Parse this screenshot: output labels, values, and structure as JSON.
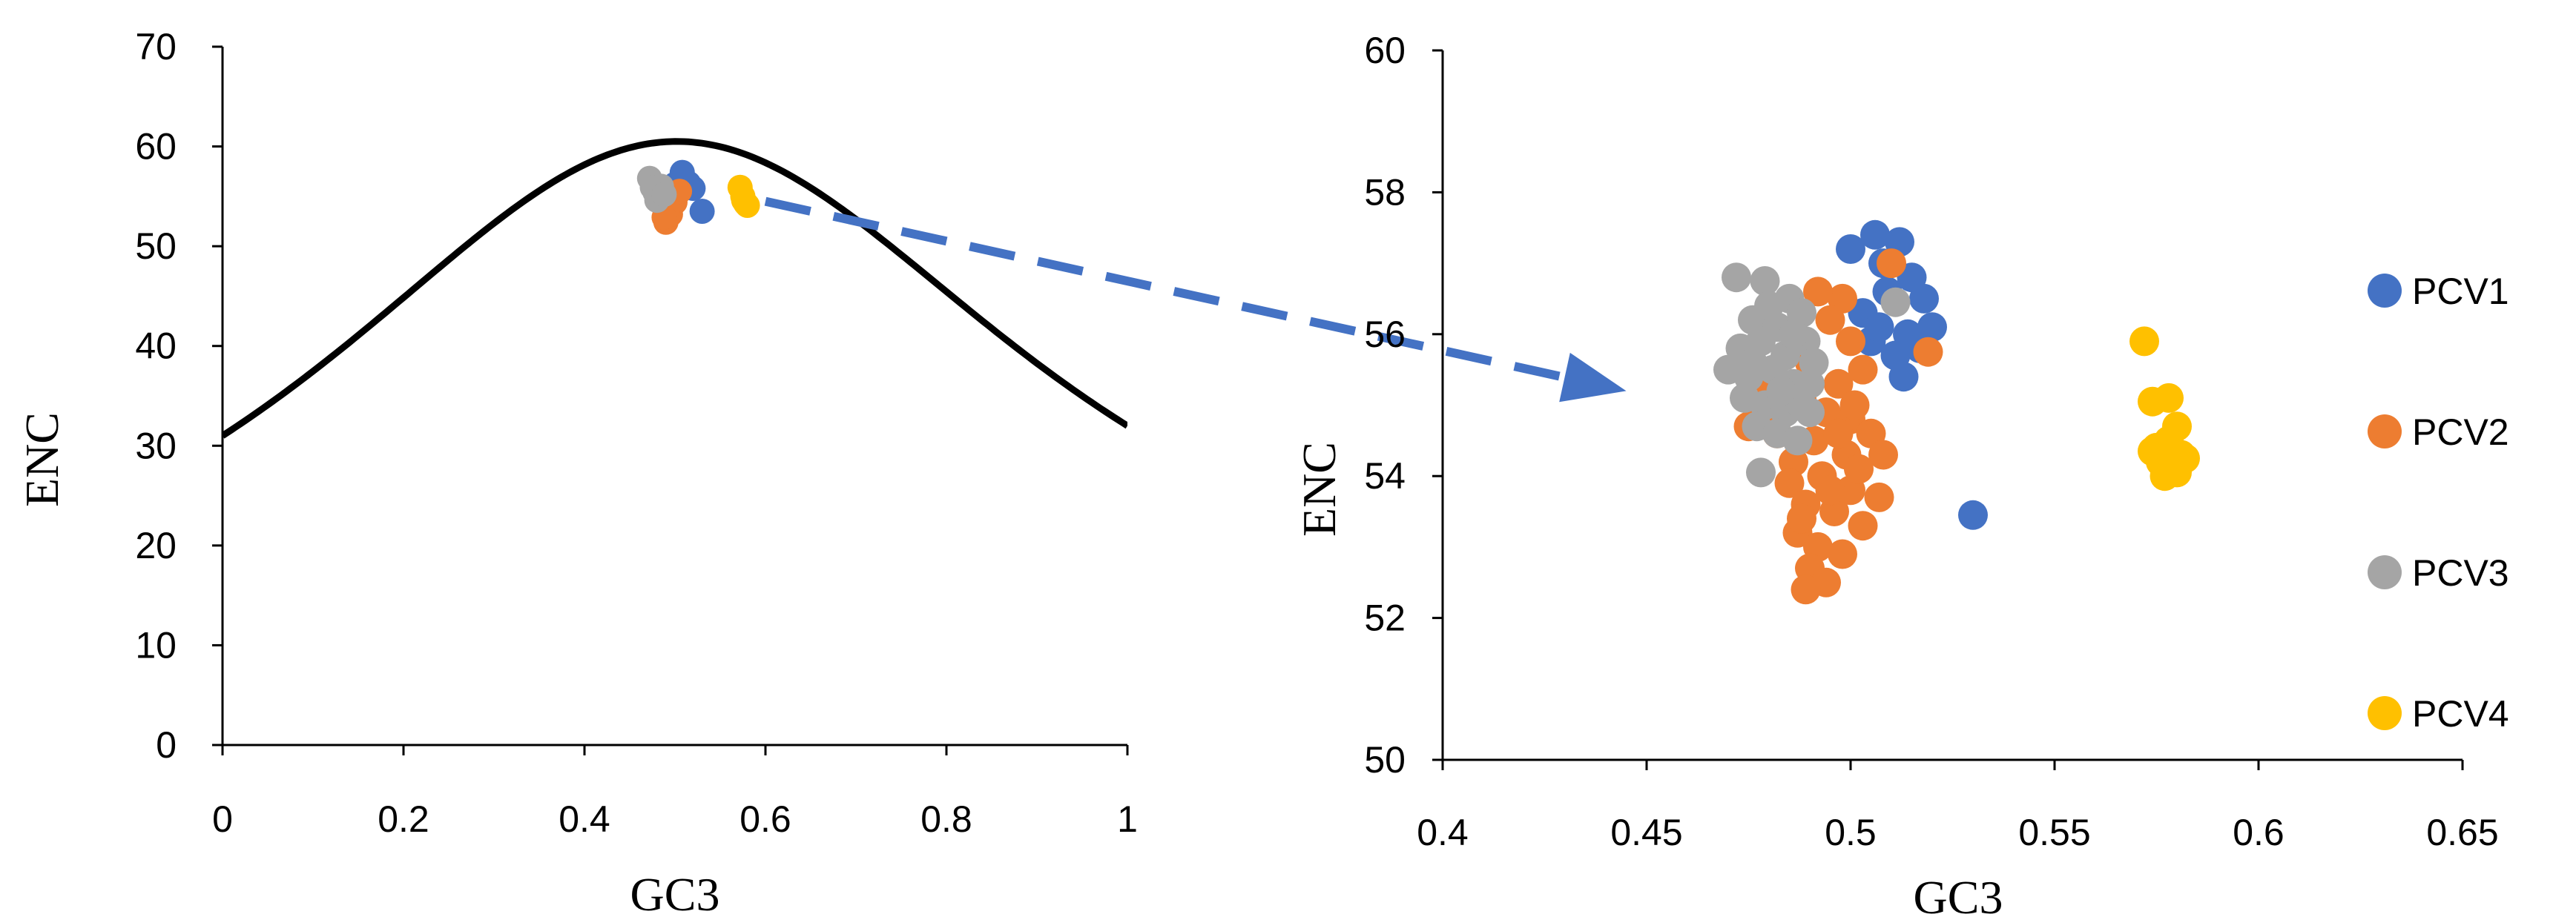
{
  "colors": {
    "PCV1": "#4472c4",
    "PCV2": "#ed7d31",
    "PCV3": "#a5a5a5",
    "PCV4": "#ffc000",
    "curve": "#000000",
    "arrow": "#4472c4"
  },
  "chart_data": [
    {
      "type": "line",
      "title": "",
      "xlabel": "GC3",
      "ylabel": "ENC",
      "xlim": [
        0,
        1
      ],
      "ylim": [
        0,
        70
      ],
      "xticks": [
        0,
        0.2,
        0.4,
        0.6,
        0.8,
        1
      ],
      "xtick_labels": [
        "0",
        "0.2",
        "0.4",
        "0.6",
        "0.8",
        "1"
      ],
      "yticks": [
        0,
        10,
        20,
        30,
        40,
        50,
        60,
        70
      ],
      "ytick_labels": [
        "0",
        "10",
        "20",
        "30",
        "40",
        "50",
        "60",
        "70"
      ],
      "grid": false,
      "curve": {
        "formula": "ENC = 2 + GC3 + 29 / (GC3^2 + (1 - GC3)^2)",
        "x": [
          0,
          0.05,
          0.1,
          0.15,
          0.2,
          0.25,
          0.3,
          0.35,
          0.4,
          0.45,
          0.5,
          0.55,
          0.6,
          0.65,
          0.7,
          0.75,
          0.8,
          0.85,
          0.9,
          0.95,
          1
        ],
        "y": [
          31.0,
          34.1,
          37.6,
          41.3,
          45.1,
          48.7,
          52.0,
          54.9,
          57.2,
          59.4,
          60.5,
          60.1,
          58.6,
          56.2,
          53.0,
          49.3,
          45.3,
          41.5,
          38.0,
          34.9,
          32.0
        ]
      },
      "series": [
        {
          "name": "PCV1",
          "points": [
            [
              0.5,
              56.2
            ],
            [
              0.508,
              57.4
            ],
            [
              0.515,
              56.3
            ],
            [
              0.52,
              55.8
            ],
            [
              0.53,
              53.5
            ],
            [
              0.498,
              55.4
            ]
          ]
        },
        {
          "name": "PCV2",
          "points": [
            [
              0.49,
              52.4
            ],
            [
              0.495,
              53.2
            ],
            [
              0.5,
              54.4
            ],
            [
              0.505,
              55.5
            ],
            [
              0.492,
              53.8
            ],
            [
              0.488,
              52.9
            ]
          ]
        },
        {
          "name": "PCV3",
          "points": [
            [
              0.472,
              56.8
            ],
            [
              0.478,
              55.4
            ],
            [
              0.485,
              56.0
            ],
            [
              0.48,
              54.6
            ],
            [
              0.475,
              55.9
            ],
            [
              0.488,
              55.2
            ]
          ]
        },
        {
          "name": "PCV4",
          "points": [
            [
              0.572,
              55.9
            ],
            [
              0.575,
              55.0
            ],
            [
              0.578,
              54.3
            ],
            [
              0.58,
              54.1
            ],
            [
              0.576,
              54.6
            ]
          ]
        }
      ]
    },
    {
      "type": "scatter",
      "title": "",
      "xlabel": "GC3",
      "ylabel": "ENC",
      "xlim": [
        0.4,
        0.65
      ],
      "ylim": [
        50,
        60
      ],
      "xticks": [
        0.4,
        0.45,
        0.5,
        0.55,
        0.6,
        0.65
      ],
      "xtick_labels": [
        "0.4",
        "0.45",
        "0.5",
        "0.55",
        "0.6",
        "0.65"
      ],
      "yticks": [
        50,
        52,
        54,
        56,
        58,
        60
      ],
      "ytick_labels": [
        "50",
        "52",
        "54",
        "56",
        "58",
        "60"
      ],
      "grid": false,
      "legend": {
        "position": "right",
        "entries": [
          "PCV1",
          "PCV2",
          "PCV3",
          "PCV4"
        ]
      },
      "series": [
        {
          "name": "PCV1",
          "points": [
            [
              0.5,
              57.2
            ],
            [
              0.506,
              57.4
            ],
            [
              0.508,
              57.0
            ],
            [
              0.512,
              57.3
            ],
            [
              0.515,
              56.8
            ],
            [
              0.518,
              56.5
            ],
            [
              0.503,
              56.3
            ],
            [
              0.509,
              56.6
            ],
            [
              0.514,
              56.0
            ],
            [
              0.52,
              56.1
            ],
            [
              0.505,
              55.9
            ],
            [
              0.511,
              55.7
            ],
            [
              0.513,
              55.4
            ],
            [
              0.517,
              55.8
            ],
            [
              0.507,
              56.1
            ],
            [
              0.53,
              53.45
            ]
          ]
        },
        {
          "name": "PCV2",
          "points": [
            [
              0.498,
              56.5
            ],
            [
              0.51,
              57.0
            ],
            [
              0.519,
              55.75
            ],
            [
              0.492,
              56.6
            ],
            [
              0.495,
              56.2
            ],
            [
              0.5,
              55.9
            ],
            [
              0.503,
              55.5
            ],
            [
              0.497,
              55.3
            ],
            [
              0.49,
              55.6
            ],
            [
              0.488,
              55.1
            ],
            [
              0.494,
              54.9
            ],
            [
              0.5,
              54.8
            ],
            [
              0.505,
              54.6
            ],
            [
              0.508,
              54.3
            ],
            [
              0.499,
              54.3
            ],
            [
              0.491,
              54.5
            ],
            [
              0.486,
              54.2
            ],
            [
              0.493,
              54.0
            ],
            [
              0.5,
              53.8
            ],
            [
              0.507,
              53.7
            ],
            [
              0.485,
              53.9
            ],
            [
              0.489,
              53.6
            ],
            [
              0.496,
              53.5
            ],
            [
              0.503,
              53.3
            ],
            [
              0.487,
              53.2
            ],
            [
              0.492,
              53.0
            ],
            [
              0.498,
              52.9
            ],
            [
              0.49,
              52.7
            ],
            [
              0.494,
              52.5
            ],
            [
              0.489,
              52.4
            ],
            [
              0.482,
              54.6
            ],
            [
              0.478,
              54.8
            ],
            [
              0.475,
              54.7
            ],
            [
              0.484,
              55.0
            ],
            [
              0.48,
              55.3
            ],
            [
              0.501,
              55.0
            ],
            [
              0.497,
              54.6
            ],
            [
              0.488,
              53.4
            ],
            [
              0.495,
              53.8
            ],
            [
              0.502,
              54.1
            ]
          ]
        },
        {
          "name": "PCV3",
          "points": [
            [
              0.472,
              56.8
            ],
            [
              0.479,
              56.75
            ],
            [
              0.485,
              56.5
            ],
            [
              0.488,
              56.3
            ],
            [
              0.476,
              56.2
            ],
            [
              0.482,
              56.1
            ],
            [
              0.473,
              55.8
            ],
            [
              0.478,
              55.9
            ],
            [
              0.484,
              55.7
            ],
            [
              0.489,
              55.9
            ],
            [
              0.47,
              55.5
            ],
            [
              0.475,
              55.4
            ],
            [
              0.481,
              55.5
            ],
            [
              0.486,
              55.3
            ],
            [
              0.491,
              55.6
            ],
            [
              0.474,
              55.1
            ],
            [
              0.479,
              55.0
            ],
            [
              0.484,
              54.9
            ],
            [
              0.488,
              55.0
            ],
            [
              0.477,
              54.7
            ],
            [
              0.482,
              54.6
            ],
            [
              0.487,
              54.5
            ],
            [
              0.49,
              54.9
            ],
            [
              0.478,
              54.05
            ],
            [
              0.511,
              56.45
            ],
            [
              0.48,
              56.4
            ],
            [
              0.486,
              56.0
            ],
            [
              0.483,
              55.2
            ],
            [
              0.476,
              55.6
            ],
            [
              0.49,
              55.3
            ]
          ]
        },
        {
          "name": "PCV4",
          "points": [
            [
              0.572,
              55.9
            ],
            [
              0.574,
              55.05
            ],
            [
              0.578,
              55.1
            ],
            [
              0.58,
              54.7
            ],
            [
              0.575,
              54.4
            ],
            [
              0.578,
              54.5
            ],
            [
              0.581,
              54.3
            ],
            [
              0.576,
              54.2
            ],
            [
              0.579,
              54.1
            ],
            [
              0.582,
              54.25
            ],
            [
              0.574,
              54.35
            ],
            [
              0.577,
              54.0
            ],
            [
              0.58,
              54.05
            ]
          ]
        }
      ]
    }
  ]
}
